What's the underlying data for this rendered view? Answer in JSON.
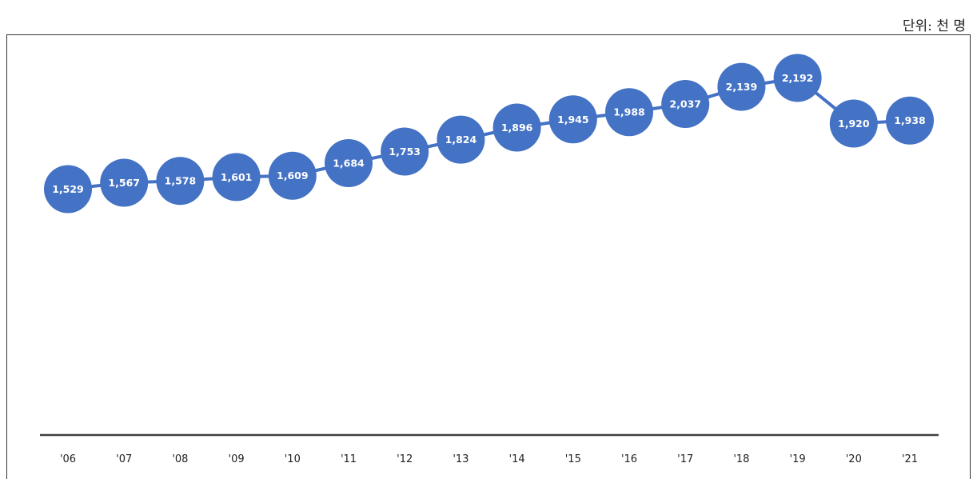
{
  "unit_label": "단위: 천 명",
  "colors": {
    "series": "#4472c4",
    "axis": "#404040"
  },
  "chart_data": {
    "type": "line",
    "categories": [
      "'06",
      "'07",
      "'08",
      "'09",
      "'10",
      "'11",
      "'12",
      "'13",
      "'14",
      "'15",
      "'16",
      "'17",
      "'18",
      "'19",
      "'20",
      "'21"
    ],
    "series": [
      {
        "values": [
          1529,
          1567,
          1578,
          1601,
          1609,
          1684,
          1753,
          1824,
          1896,
          1945,
          1988,
          2037,
          2139,
          2192,
          1920,
          1938
        ]
      }
    ],
    "data_labels": [
      "1,529",
      "1,567",
      "1,578",
      "1,601",
      "1,609",
      "1,684",
      "1,753",
      "1,824",
      "1,896",
      "1,945",
      "1,988",
      "2,037",
      "2,139",
      "2,192",
      "1,920",
      "1,938"
    ],
    "grid": false,
    "legend": "none"
  }
}
